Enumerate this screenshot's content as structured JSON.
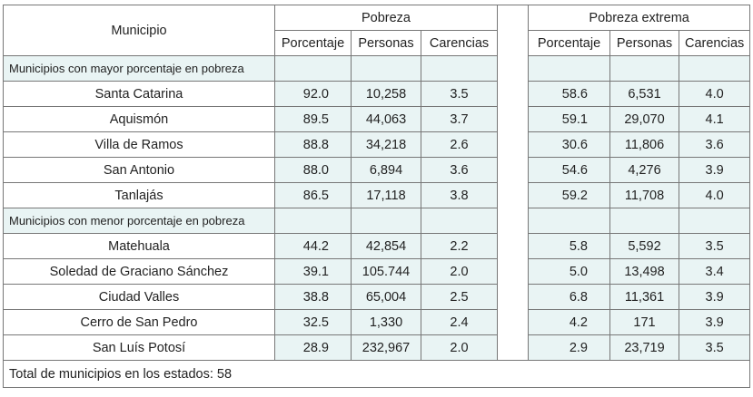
{
  "header": {
    "municipio": "Municipio",
    "pobreza": "Pobreza",
    "pobreza_extrema": "Pobreza extrema",
    "porcentaje": "Porcentaje",
    "personas": "Personas",
    "carencias": "Carencias"
  },
  "sections": [
    {
      "title": "Municipios con mayor porcentaje en pobreza",
      "rows": [
        {
          "name": "Santa Catarina",
          "p_pct": "92.0",
          "p_pers": "10,258",
          "p_car": "3.5",
          "e_pct": "58.6",
          "e_pers": "6,531",
          "e_car": "4.0"
        },
        {
          "name": "Aquismón",
          "p_pct": "89.5",
          "p_pers": "44,063",
          "p_car": "3.7",
          "e_pct": "59.1",
          "e_pers": "29,070",
          "e_car": "4.1"
        },
        {
          "name": "Villa de Ramos",
          "p_pct": "88.8",
          "p_pers": "34,218",
          "p_car": "2.6",
          "e_pct": "30.6",
          "e_pers": "11,806",
          "e_car": "3.6"
        },
        {
          "name": "San Antonio",
          "p_pct": "88.0",
          "p_pers": "6,894",
          "p_car": "3.6",
          "e_pct": "54.6",
          "e_pers": "4,276",
          "e_car": "3.9"
        },
        {
          "name": "Tanlajás",
          "p_pct": "86.5",
          "p_pers": "17,118",
          "p_car": "3.8",
          "e_pct": "59.2",
          "e_pers": "11,708",
          "e_car": "4.0"
        }
      ]
    },
    {
      "title": "Municipios con menor porcentaje en pobreza",
      "rows": [
        {
          "name": "Matehuala",
          "p_pct": "44.2",
          "p_pers": "42,854",
          "p_car": "2.2",
          "e_pct": "5.8",
          "e_pers": "5,592",
          "e_car": "3.5"
        },
        {
          "name": "Soledad de Graciano Sánchez",
          "p_pct": "39.1",
          "p_pers": "105.744",
          "p_car": "2.0",
          "e_pct": "5.0",
          "e_pers": "13,498",
          "e_car": "3.4"
        },
        {
          "name": "Ciudad Valles",
          "p_pct": "38.8",
          "p_pers": "65,004",
          "p_car": "2.5",
          "e_pct": "6.8",
          "e_pers": "11,361",
          "e_car": "3.9"
        },
        {
          "name": "Cerro de San Pedro",
          "p_pct": "32.5",
          "p_pers": "1,330",
          "p_car": "2.4",
          "e_pct": "4.2",
          "e_pers": "171",
          "e_car": "3.9"
        },
        {
          "name": "San Luís Potosí",
          "p_pct": "28.9",
          "p_pers": "232,967",
          "p_car": "2.0",
          "e_pct": "2.9",
          "e_pers": "23,719",
          "e_car": "3.5"
        }
      ]
    }
  ],
  "footer": "Total de municipios en los estados: 58"
}
